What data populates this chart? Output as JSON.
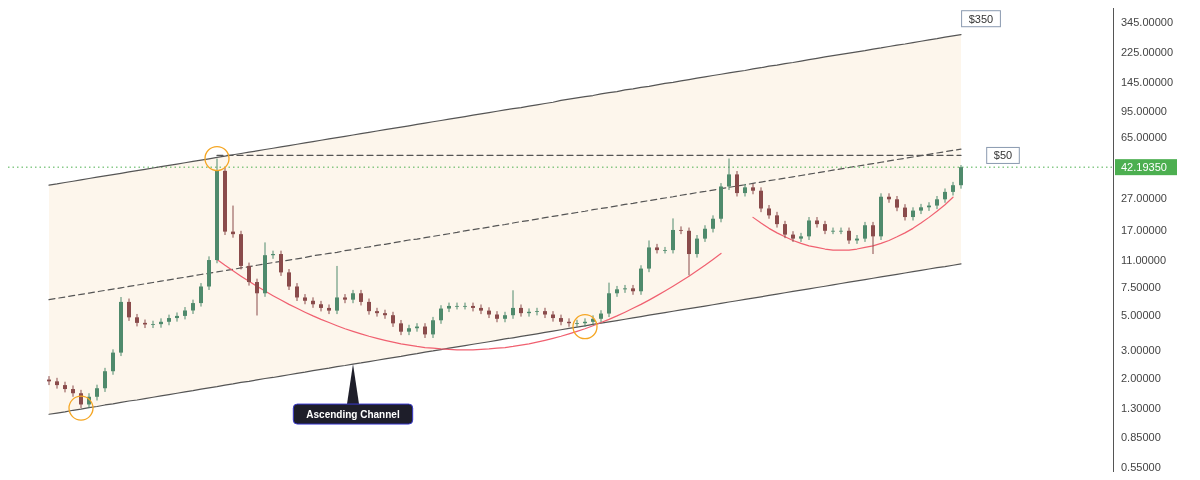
{
  "chart_data": {
    "type": "candlestick",
    "log": "y",
    "tick_labels": "y",
    "ylim": [
      0.55,
      345
    ],
    "yticks": [
      {
        "value": 345,
        "label": "345.00000"
      },
      {
        "value": 225,
        "label": "225.00000"
      },
      {
        "value": 145,
        "label": "145.00000"
      },
      {
        "value": 95,
        "label": "95.00000"
      },
      {
        "value": 65,
        "label": "65.00000"
      },
      {
        "value": 27,
        "label": "27.00000"
      },
      {
        "value": 17,
        "label": "17.00000"
      },
      {
        "value": 11,
        "label": "11.00000"
      },
      {
        "value": 7.5,
        "label": "7.50000"
      },
      {
        "value": 5,
        "label": "5.00000"
      },
      {
        "value": 3,
        "label": "3.00000"
      },
      {
        "value": 2,
        "label": "2.00000"
      },
      {
        "value": 1.3,
        "label": "1.30000"
      },
      {
        "value": 0.85,
        "label": "0.85000"
      },
      {
        "value": 0.55,
        "label": "0.55000"
      }
    ],
    "categories": [
      null,
      null,
      null,
      null,
      null,
      null,
      null,
      null,
      null,
      null,
      null,
      null,
      null,
      null,
      null,
      null,
      null,
      null,
      null,
      null,
      null,
      null,
      null,
      null,
      null,
      null,
      null,
      null,
      null,
      null,
      null,
      null,
      null,
      null,
      null,
      null,
      null,
      null,
      null,
      null,
      null,
      null,
      null,
      null,
      null,
      null,
      null,
      null,
      null,
      null,
      null,
      null,
      null,
      null,
      null,
      null,
      null,
      null,
      null,
      null,
      null,
      null,
      null,
      null,
      null,
      null,
      null,
      null,
      null,
      null,
      null,
      null,
      null,
      null,
      null,
      null,
      null,
      null,
      null,
      null,
      null,
      null,
      null,
      null,
      null,
      null,
      null,
      null,
      null,
      null,
      null,
      null,
      null,
      null,
      null,
      null,
      null,
      null,
      null,
      null,
      null,
      null,
      null,
      null,
      null,
      null,
      null,
      null,
      null,
      null,
      null,
      null,
      null,
      null,
      null
    ],
    "ohlc": [
      [
        1.95,
        2.05,
        1.8,
        1.9
      ],
      [
        1.9,
        2.0,
        1.71,
        1.8
      ],
      [
        1.8,
        1.89,
        1.62,
        1.7
      ],
      [
        1.7,
        1.79,
        1.52,
        1.6
      ],
      [
        1.6,
        1.68,
        1.29,
        1.36
      ],
      [
        1.36,
        1.6,
        1.29,
        1.52
      ],
      [
        1.52,
        1.81,
        1.44,
        1.72
      ],
      [
        1.72,
        2.31,
        1.63,
        2.2
      ],
      [
        2.2,
        3.02,
        2.09,
        2.88
      ],
      [
        2.88,
        6.44,
        2.74,
        6.0
      ],
      [
        6.0,
        6.3,
        4.56,
        4.8
      ],
      [
        4.8,
        5.04,
        4.21,
        4.43
      ],
      [
        4.43,
        4.65,
        4.11,
        4.33
      ],
      [
        4.33,
        4.57,
        4.11,
        4.35
      ],
      [
        4.35,
        4.73,
        4.13,
        4.5
      ],
      [
        4.5,
        4.99,
        4.28,
        4.75
      ],
      [
        4.75,
        5.15,
        4.51,
        4.9
      ],
      [
        4.9,
        5.57,
        4.66,
        5.3
      ],
      [
        5.3,
        6.2,
        5.04,
        5.9
      ],
      [
        5.9,
        7.88,
        5.61,
        7.5
      ],
      [
        7.5,
        11.6,
        7.13,
        11.0
      ],
      [
        11.0,
        47.8,
        10.5,
        40.0
      ],
      [
        40.0,
        42.0,
        15.8,
        16.6
      ],
      [
        16.6,
        24.2,
        15.2,
        16.0
      ],
      [
        16.0,
        16.8,
        9.6,
        10.1
      ],
      [
        10.1,
        10.6,
        7.6,
        8.0
      ],
      [
        8.0,
        8.4,
        4.93,
        6.8
      ],
      [
        6.8,
        14.2,
        6.46,
        11.8
      ],
      [
        11.8,
        12.6,
        11.2,
        12.0
      ],
      [
        12.0,
        12.6,
        8.74,
        9.2
      ],
      [
        9.2,
        9.66,
        7.13,
        7.5
      ],
      [
        7.5,
        7.88,
        6.08,
        6.4
      ],
      [
        6.4,
        6.72,
        5.8,
        6.1
      ],
      [
        6.1,
        6.41,
        5.51,
        5.8
      ],
      [
        5.8,
        6.09,
        5.23,
        5.5
      ],
      [
        5.5,
        5.78,
        5.03,
        5.29
      ],
      [
        5.29,
        10.1,
        5.03,
        6.4
      ],
      [
        6.4,
        6.72,
        5.89,
        6.2
      ],
      [
        6.2,
        7.14,
        5.89,
        6.8
      ],
      [
        6.8,
        7.14,
        5.7,
        6.0
      ],
      [
        6.0,
        6.3,
        4.99,
        5.25
      ],
      [
        5.25,
        5.51,
        4.85,
        5.1
      ],
      [
        5.1,
        5.36,
        4.7,
        4.95
      ],
      [
        4.95,
        5.2,
        4.18,
        4.4
      ],
      [
        4.4,
        4.62,
        3.71,
        3.9
      ],
      [
        3.9,
        4.31,
        3.71,
        4.1
      ],
      [
        4.1,
        4.41,
        3.9,
        4.2
      ],
      [
        4.2,
        4.41,
        3.56,
        3.75
      ],
      [
        3.75,
        4.83,
        3.56,
        4.6
      ],
      [
        4.6,
        5.72,
        4.37,
        5.45
      ],
      [
        5.45,
        5.94,
        5.18,
        5.66
      ],
      [
        5.66,
        5.94,
        5.38,
        5.66
      ],
      [
        5.66,
        5.94,
        5.38,
        5.66
      ],
      [
        5.66,
        5.94,
        5.23,
        5.5
      ],
      [
        5.5,
        5.78,
        5.03,
        5.29
      ],
      [
        5.29,
        5.55,
        4.75,
        5.0
      ],
      [
        5.0,
        5.25,
        4.47,
        4.7
      ],
      [
        4.7,
        5.2,
        4.47,
        4.95
      ],
      [
        4.95,
        7.1,
        4.7,
        5.5
      ],
      [
        5.5,
        5.78,
        4.85,
        5.1
      ],
      [
        5.1,
        5.46,
        4.85,
        5.2
      ],
      [
        5.2,
        5.51,
        4.94,
        5.25
      ],
      [
        5.25,
        5.51,
        4.75,
        5.0
      ],
      [
        5.0,
        5.25,
        4.51,
        4.75
      ],
      [
        4.75,
        4.99,
        4.28,
        4.5
      ],
      [
        4.5,
        4.73,
        4.19,
        4.41
      ],
      [
        4.41,
        4.63,
        4.19,
        4.41
      ],
      [
        4.41,
        4.73,
        4.19,
        4.5
      ],
      [
        4.5,
        4.94,
        4.28,
        4.7
      ],
      [
        4.7,
        5.32,
        4.47,
        5.07
      ],
      [
        5.07,
        7.93,
        4.82,
        6.8
      ],
      [
        6.8,
        7.56,
        6.46,
        7.2
      ],
      [
        7.2,
        7.67,
        6.84,
        7.3
      ],
      [
        7.3,
        7.67,
        6.65,
        7.0
      ],
      [
        7.0,
        10.2,
        6.65,
        9.72
      ],
      [
        9.72,
        14.6,
        9.23,
        13.2
      ],
      [
        13.2,
        13.9,
        12.1,
        12.7
      ],
      [
        12.7,
        13.3,
        12.1,
        12.7
      ],
      [
        12.7,
        20.1,
        12.1,
        17.0
      ],
      [
        17.0,
        17.9,
        16.0,
        16.8
      ],
      [
        16.8,
        17.6,
        8.82,
        12.0
      ],
      [
        12.0,
        15.8,
        11.4,
        15.0
      ],
      [
        15.0,
        18.2,
        14.3,
        17.3
      ],
      [
        17.3,
        21.0,
        16.4,
        20.0
      ],
      [
        20.0,
        33.5,
        19.0,
        31.9
      ],
      [
        31.9,
        47.8,
        30.3,
        38.0
      ],
      [
        38.0,
        39.9,
        27.6,
        29.0
      ],
      [
        29.0,
        33.1,
        27.6,
        31.5
      ],
      [
        31.5,
        33.1,
        28.5,
        30.0
      ],
      [
        30.0,
        31.5,
        22.0,
        23.2
      ],
      [
        23.2,
        24.4,
        20.0,
        21.0
      ],
      [
        21.0,
        22.1,
        17.6,
        18.5
      ],
      [
        18.5,
        19.4,
        15.1,
        15.9
      ],
      [
        15.9,
        16.7,
        14.3,
        15.0
      ],
      [
        15.0,
        16.3,
        14.3,
        15.5
      ],
      [
        15.5,
        20.5,
        14.7,
        19.5
      ],
      [
        19.5,
        20.5,
        17.6,
        18.5
      ],
      [
        18.5,
        19.4,
        16.0,
        16.8
      ],
      [
        16.8,
        17.6,
        16.0,
        16.8
      ],
      [
        16.8,
        17.6,
        16.0,
        16.8
      ],
      [
        16.8,
        17.6,
        13.9,
        14.6
      ],
      [
        14.6,
        15.8,
        13.9,
        15.0
      ],
      [
        15.0,
        19.1,
        14.3,
        18.2
      ],
      [
        18.2,
        19.1,
        12.0,
        15.5
      ],
      [
        15.5,
        28.9,
        14.7,
        27.5
      ],
      [
        27.5,
        28.9,
        25.2,
        26.5
      ],
      [
        26.5,
        27.8,
        22.3,
        23.5
      ],
      [
        23.5,
        24.7,
        19.5,
        20.5
      ],
      [
        20.5,
        23.6,
        19.5,
        22.5
      ],
      [
        22.5,
        24.8,
        21.4,
        23.6
      ],
      [
        23.6,
        25.4,
        22.4,
        24.2
      ],
      [
        24.2,
        27.8,
        23.0,
        26.5
      ],
      [
        26.5,
        31.0,
        25.2,
        29.5
      ],
      [
        29.5,
        34.1,
        28.0,
        32.5
      ],
      [
        32.5,
        43.5,
        30.9,
        42.19
      ]
    ],
    "colors": [
      "#8a4b4b",
      "#8a4b4b",
      "#8a4b4b",
      "#8a4b4b",
      "#8a4b4b",
      "#4f8a6c",
      "#4f8a6c",
      "#4f8a6c",
      "#4f8a6c",
      "#4f8a6c",
      "#8a4b4b",
      "#8a4b4b",
      "#8a4b4b",
      "#4f8a6c",
      "#4f8a6c",
      "#4f8a6c",
      "#4f8a6c",
      "#4f8a6c",
      "#4f8a6c",
      "#4f8a6c",
      "#4f8a6c",
      "#4f8a6c",
      "#8a4b4b",
      "#8a4b4b",
      "#8a4b4b",
      "#8a4b4b",
      "#8a4b4b",
      "#4f8a6c",
      "#4f8a6c",
      "#8a4b4b",
      "#8a4b4b",
      "#8a4b4b",
      "#8a4b4b",
      "#8a4b4b",
      "#8a4b4b",
      "#8a4b4b",
      "#4f8a6c",
      "#8a4b4b",
      "#4f8a6c",
      "#8a4b4b",
      "#8a4b4b",
      "#8a4b4b",
      "#8a4b4b",
      "#8a4b4b",
      "#8a4b4b",
      "#4f8a6c",
      "#4f8a6c",
      "#8a4b4b",
      "#4f8a6c",
      "#4f8a6c",
      "#4f8a6c",
      "#4f8a6c",
      "#4f8a6c",
      "#8a4b4b",
      "#8a4b4b",
      "#8a4b4b",
      "#8a4b4b",
      "#4f8a6c",
      "#4f8a6c",
      "#8a4b4b",
      "#4f8a6c",
      "#4f8a6c",
      "#8a4b4b",
      "#8a4b4b",
      "#8a4b4b",
      "#8a4b4b",
      "#4f8a6c",
      "#4f8a6c",
      "#4f8a6c",
      "#4f8a6c",
      "#4f8a6c",
      "#4f8a6c",
      "#4f8a6c",
      "#8a4b4b",
      "#4f8a6c",
      "#4f8a6c",
      "#8a4b4b",
      "#4f8a6c",
      "#4f8a6c",
      "#8a4b4b",
      "#8a4b4b",
      "#4f8a6c",
      "#4f8a6c",
      "#4f8a6c",
      "#4f8a6c",
      "#4f8a6c",
      "#8a4b4b",
      "#4f8a6c",
      "#8a4b4b",
      "#8a4b4b",
      "#8a4b4b",
      "#8a4b4b",
      "#8a4b4b",
      "#8a4b4b",
      "#4f8a6c",
      "#4f8a6c",
      "#8a4b4b",
      "#8a4b4b",
      "#4f8a6c",
      "#4f8a6c",
      "#8a4b4b",
      "#4f8a6c",
      "#4f8a6c",
      "#8a4b4b",
      "#4f8a6c",
      "#8a4b4b",
      "#8a4b4b",
      "#8a4b4b",
      "#4f8a6c",
      "#4f8a6c",
      "#4f8a6c",
      "#4f8a6c",
      "#4f8a6c",
      "#4f8a6c",
      "#4f8a6c"
    ],
    "series": [
      {
        "type": "line",
        "color": "#555555",
        "line_style": "solid",
        "values": [
          32.5,
          33.1,
          33.8,
          34.4,
          35.1,
          35.8,
          36.5,
          37.2,
          37.9,
          38.6,
          39.4,
          40.1,
          40.9,
          41.7,
          42.5,
          43.3,
          44.1,
          45.0,
          45.9,
          46.7,
          47.6,
          48.6,
          49.5,
          50.5,
          51.4,
          52.4,
          53.4,
          54.5,
          55.5,
          56.6,
          57.7,
          58.8,
          59.9,
          61.1,
          62.3,
          63.5,
          64.7,
          65.9,
          67.2,
          68.5,
          69.8,
          71.2,
          72.6,
          73.9,
          75.4,
          76.8,
          78.3,
          79.8,
          81.4,
          82.9,
          84.5,
          86.2,
          87.8,
          89.5,
          91.3,
          93.0,
          94.8,
          96.6,
          98.5,
          100,
          102,
          104,
          106,
          108,
          111,
          113,
          115,
          117,
          119,
          122,
          124,
          126,
          129,
          131,
          134,
          136,
          139,
          142,
          144,
          147,
          150,
          153,
          156,
          159,
          162,
          165,
          168,
          171,
          175,
          178,
          182,
          185,
          189,
          192,
          196,
          200,
          204,
          208,
          212,
          216,
          220,
          224,
          228,
          233,
          237,
          242,
          247,
          251,
          256,
          261,
          266,
          271,
          277,
          282,
          287
        ]
      },
      {
        "type": "line",
        "color": "#555555",
        "line_style": "solid",
        "values": [
          1.18,
          1.2,
          1.22,
          1.25,
          1.27,
          1.3,
          1.32,
          1.35,
          1.37,
          1.4,
          1.43,
          1.45,
          1.48,
          1.51,
          1.54,
          1.57,
          1.6,
          1.63,
          1.66,
          1.7,
          1.73,
          1.76,
          1.8,
          1.83,
          1.87,
          1.9,
          1.94,
          1.98,
          2.01,
          2.05,
          2.09,
          2.13,
          2.17,
          2.22,
          2.26,
          2.3,
          2.35,
          2.39,
          2.44,
          2.48,
          2.53,
          2.58,
          2.63,
          2.68,
          2.73,
          2.79,
          2.84,
          2.9,
          2.95,
          3.01,
          3.07,
          3.13,
          3.19,
          3.25,
          3.31,
          3.37,
          3.44,
          3.51,
          3.57,
          3.64,
          3.71,
          3.78,
          3.86,
          3.93,
          4.01,
          4.09,
          4.16,
          4.24,
          4.33,
          4.41,
          4.5,
          4.58,
          4.67,
          4.76,
          4.85,
          4.95,
          5.04,
          5.14,
          5.24,
          5.34,
          5.44,
          5.55,
          5.65,
          5.76,
          5.87,
          5.99,
          6.1,
          6.22,
          6.34,
          6.46,
          6.59,
          6.72,
          6.85,
          6.98,
          7.11,
          7.25,
          7.39,
          7.53,
          7.68,
          7.83,
          7.98,
          8.13,
          8.29,
          8.45,
          8.61,
          8.78,
          8.95,
          9.12,
          9.3,
          9.48,
          9.66,
          9.85,
          10.0,
          10.2,
          10.4
        ]
      },
      {
        "type": "line",
        "color": "#555555",
        "line_style": "dashed",
        "values": [
          6.2,
          6.32,
          6.44,
          6.57,
          6.69,
          6.82,
          6.95,
          7.09,
          7.22,
          7.36,
          7.51,
          7.65,
          7.8,
          7.95,
          8.1,
          8.26,
          8.42,
          8.58,
          8.75,
          8.92,
          9.09,
          9.26,
          9.44,
          9.62,
          9.81,
          10.0,
          10.2,
          10.4,
          10.6,
          10.8,
          11.0,
          11.2,
          11.4,
          11.7,
          11.9,
          12.1,
          12.3,
          12.6,
          12.8,
          13.1,
          13.3,
          13.6,
          13.8,
          14.1,
          14.4,
          14.7,
          14.9,
          15.2,
          15.5,
          15.8,
          16.1,
          16.4,
          16.8,
          17.1,
          17.4,
          17.7,
          18.1,
          18.4,
          18.8,
          19.2,
          19.5,
          19.9,
          20.3,
          20.7,
          21.1,
          21.5,
          21.9,
          22.3,
          22.8,
          23.2,
          23.6,
          24.1,
          24.6,
          25.0,
          25.5,
          26.0,
          26.5,
          27.0,
          27.5,
          28.1,
          28.6,
          29.2,
          29.7,
          30.3,
          30.9,
          31.5,
          32.1,
          32.7,
          33.4,
          34.0,
          34.7,
          35.3,
          36.0,
          36.7,
          37.4,
          38.1,
          38.9,
          39.6,
          40.4,
          41.2,
          42.0,
          42.8,
          43.6,
          44.4,
          45.3,
          46.2,
          47.1,
          48.0,
          48.9,
          49.8,
          50.8,
          51.8,
          52.8,
          53.8,
          54.8
        ],
        "upper": [
          32.5,
          33.1,
          33.8,
          34.4,
          35.1,
          35.8,
          36.5,
          37.2,
          37.9,
          38.6,
          39.4,
          40.1,
          40.9,
          41.7,
          42.5,
          43.3,
          44.1,
          45.0,
          45.9,
          46.7,
          47.6,
          48.6,
          49.5,
          50.5,
          51.4,
          52.4,
          53.4,
          54.5,
          55.5,
          56.6,
          57.7,
          58.8,
          59.9,
          61.1,
          62.3,
          63.5,
          64.7,
          65.9,
          67.2,
          68.5,
          69.8,
          71.2,
          72.6,
          73.9,
          75.4,
          76.8,
          78.3,
          79.8,
          81.4,
          82.9,
          84.5,
          86.2,
          87.8,
          89.5,
          91.3,
          93.0,
          94.8,
          96.6,
          98.5,
          100,
          102,
          104,
          106,
          108,
          111,
          113,
          115,
          117,
          119,
          122,
          124,
          126,
          129,
          131,
          134,
          136,
          139,
          142,
          144,
          147,
          150,
          153,
          156,
          159,
          162,
          165,
          168,
          171,
          175,
          178,
          182,
          185,
          189,
          192,
          196,
          200,
          204,
          208,
          212,
          216,
          220,
          224,
          228,
          233,
          237,
          242,
          247,
          251,
          256,
          261,
          266,
          271,
          277,
          282,
          287
        ],
        "lower": [
          1.18,
          1.2,
          1.22,
          1.25,
          1.27,
          1.3,
          1.32,
          1.35,
          1.37,
          1.4,
          1.43,
          1.45,
          1.48,
          1.51,
          1.54,
          1.57,
          1.6,
          1.63,
          1.66,
          1.7,
          1.73,
          1.76,
          1.8,
          1.83,
          1.87,
          1.9,
          1.94,
          1.98,
          2.01,
          2.05,
          2.09,
          2.13,
          2.17,
          2.22,
          2.26,
          2.3,
          2.35,
          2.39,
          2.44,
          2.48,
          2.53,
          2.58,
          2.63,
          2.68,
          2.73,
          2.79,
          2.84,
          2.9,
          2.95,
          3.01,
          3.07,
          3.13,
          3.19,
          3.25,
          3.31,
          3.37,
          3.44,
          3.51,
          3.57,
          3.64,
          3.71,
          3.78,
          3.86,
          3.93,
          4.01,
          4.09,
          4.16,
          4.24,
          4.33,
          4.41,
          4.5,
          4.58,
          4.67,
          4.76,
          4.85,
          4.95,
          5.04,
          5.14,
          5.24,
          5.34,
          5.44,
          5.55,
          5.65,
          5.76,
          5.87,
          5.99,
          6.1,
          6.22,
          6.34,
          6.46,
          6.59,
          6.72,
          6.85,
          6.98,
          7.11,
          7.25,
          7.39,
          7.53,
          7.68,
          7.83,
          7.98,
          8.13,
          8.29,
          8.45,
          8.61,
          8.78,
          8.95,
          9.12,
          9.3,
          9.48,
          9.66,
          9.85,
          10.0,
          10.2,
          10.4
        ]
      },
      {
        "type": "line",
        "color": "#555555",
        "line_style": "dashed",
        "values": [
          null,
          null,
          null,
          null,
          null,
          null,
          null,
          null,
          null,
          null,
          null,
          null,
          null,
          null,
          null,
          null,
          null,
          null,
          null,
          null,
          null,
          50,
          50,
          50,
          50,
          50,
          50,
          50,
          50,
          50,
          50,
          50,
          50,
          50,
          50,
          50,
          50,
          50,
          50,
          50,
          50,
          50,
          50,
          50,
          50,
          50,
          50,
          50,
          50,
          50,
          50,
          50,
          50,
          50,
          50,
          50,
          50,
          50,
          50,
          50,
          50,
          50,
          50,
          50,
          50,
          50,
          50,
          50,
          50,
          50,
          50,
          50,
          50,
          50,
          50,
          50,
          50,
          50,
          50,
          50,
          50,
          50,
          50,
          50,
          50,
          50,
          50,
          50,
          50,
          50,
          50,
          50,
          50,
          50,
          50,
          50,
          50,
          50,
          50,
          50,
          50,
          50,
          50,
          50,
          50,
          50,
          50,
          50,
          50,
          50,
          50,
          50,
          50,
          50,
          50
        ]
      },
      {
        "type": "line",
        "color": "#f06070",
        "line_style": "solid",
        "values": [
          null,
          null,
          null,
          null,
          null,
          null,
          null,
          null,
          null,
          null,
          null,
          null,
          null,
          null,
          null,
          null,
          null,
          null,
          null,
          null,
          null,
          11.1,
          10.2,
          9.42,
          8.71,
          8.08,
          7.52,
          7.02,
          6.57,
          6.16,
          5.79,
          5.47,
          5.17,
          4.9,
          4.66,
          4.45,
          4.25,
          4.07,
          3.92,
          3.78,
          3.65,
          3.54,
          3.44,
          3.35,
          3.27,
          3.21,
          3.15,
          3.1,
          3.07,
          3.04,
          3.02,
          3.0,
          3.0,
          3.0,
          3.02,
          3.04,
          3.07,
          3.1,
          3.15,
          3.21,
          3.27,
          3.35,
          3.44,
          3.54,
          3.65,
          3.78,
          3.92,
          4.07,
          4.25,
          4.45,
          4.66,
          4.9,
          5.17,
          5.47,
          5.79,
          6.16,
          6.57,
          7.02,
          7.52,
          8.08,
          8.71,
          9.42,
          10.2,
          11.1,
          12.1,
          null,
          null,
          null,
          null,
          null,
          null,
          null,
          null,
          null,
          null,
          null,
          null,
          null,
          null,
          null,
          null,
          null,
          null,
          null,
          null,
          null,
          null,
          null,
          null,
          null,
          null,
          null,
          null,
          null,
          null
        ]
      },
      {
        "type": "line",
        "color": "#f06070",
        "line_style": "solid",
        "values": [
          null,
          null,
          null,
          null,
          null,
          null,
          null,
          null,
          null,
          null,
          null,
          null,
          null,
          null,
          null,
          null,
          null,
          null,
          null,
          null,
          null,
          null,
          null,
          null,
          null,
          null,
          null,
          null,
          null,
          null,
          null,
          null,
          null,
          null,
          null,
          null,
          null,
          null,
          null,
          null,
          null,
          null,
          null,
          null,
          null,
          null,
          null,
          null,
          null,
          null,
          null,
          null,
          null,
          null,
          null,
          null,
          null,
          null,
          null,
          null,
          null,
          null,
          null,
          null,
          null,
          null,
          null,
          null,
          null,
          null,
          null,
          null,
          null,
          null,
          null,
          null,
          null,
          null,
          null,
          null,
          null,
          null,
          null,
          null,
          null,
          null,
          null,
          null,
          20.4,
          18.8,
          17.4,
          16.3,
          15.4,
          14.6,
          14.0,
          13.5,
          13.2,
          12.9,
          12.7,
          12.7,
          12.7,
          12.9,
          13.2,
          13.5,
          14.0,
          14.6,
          15.4,
          16.3,
          17.4,
          18.8,
          20.4,
          22.3,
          24.5,
          27.3,
          null
        ]
      }
    ],
    "ref_lines": [
      {
        "axis": "y",
        "value": 42.1935,
        "label": "42.19350",
        "color": "#4caf50",
        "line_style": "dotted"
      }
    ],
    "annotations": [
      "$350",
      "$50",
      "Ascending Channel"
    ]
  }
}
